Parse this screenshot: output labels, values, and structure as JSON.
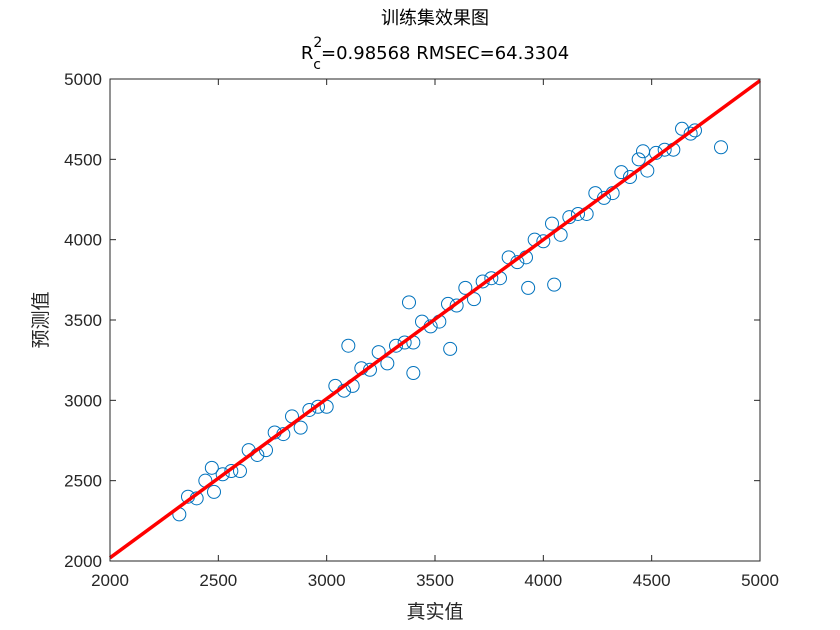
{
  "chart_data": {
    "type": "scatter",
    "title": "训练集效果图",
    "subtitle": {
      "base": "R",
      "sup": "2",
      "sub": "c",
      "rest": "=0.98568  RMSEC=64.3304"
    },
    "xlabel": "真实值",
    "ylabel": "预测值",
    "xlim": [
      2000,
      5000
    ],
    "ylim": [
      2000,
      5000
    ],
    "xticks": [
      2000,
      2500,
      3000,
      3500,
      4000,
      4500,
      5000
    ],
    "yticks": [
      2000,
      2500,
      3000,
      3500,
      4000,
      4500,
      5000
    ],
    "grid": false,
    "marker_color": "#0072BD",
    "line_color": "#FF0000",
    "fit_line": {
      "x": [
        2000,
        5000
      ],
      "y": [
        2020,
        4990
      ]
    },
    "points": {
      "x": [
        2320,
        2360,
        2400,
        2440,
        2480,
        2520,
        2560,
        2600,
        2640,
        2680,
        2720,
        2760,
        2800,
        2840,
        2880,
        2920,
        2960,
        3000,
        3040,
        3080,
        3120,
        3160,
        3200,
        3240,
        3280,
        3320,
        3360,
        3400,
        3440,
        3480,
        3520,
        3560,
        3600,
        3640,
        3680,
        3720,
        3760,
        3800,
        3840,
        3880,
        3920,
        3960,
        4000,
        4040,
        4080,
        4120,
        4160,
        4200,
        4240,
        4280,
        4320,
        4360,
        4400,
        4440,
        4480,
        4520,
        4560,
        4600,
        4640,
        4680,
        4820,
        3100,
        3570,
        4050,
        3930,
        3400,
        3380,
        4460,
        4700,
        2470
      ],
      "y": [
        2290,
        2400,
        2390,
        2500,
        2430,
        2540,
        2560,
        2560,
        2690,
        2660,
        2690,
        2800,
        2790,
        2900,
        2830,
        2940,
        2960,
        2960,
        3090,
        3060,
        3090,
        3200,
        3190,
        3300,
        3230,
        3340,
        3360,
        3360,
        3490,
        3460,
        3490,
        3600,
        3590,
        3700,
        3630,
        3740,
        3760,
        3760,
        3890,
        3860,
        3890,
        4000,
        3990,
        4100,
        4030,
        4140,
        4160,
        4160,
        4290,
        4260,
        4290,
        4420,
        4390,
        4500,
        4430,
        4540,
        4560,
        4560,
        4690,
        4660,
        4575,
        3340,
        3320,
        3720,
        3700,
        3170,
        3610,
        4550,
        4680,
        2580
      ]
    }
  }
}
